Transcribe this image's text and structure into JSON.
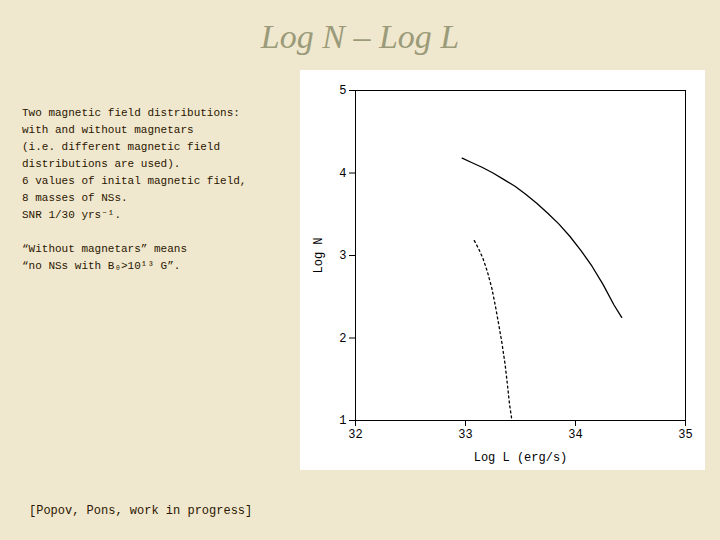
{
  "chart_data": {
    "type": "line",
    "title": "Log N – Log L",
    "xlabel": "Log L (erg/s)",
    "ylabel": "Log N",
    "xlim": [
      32,
      35
    ],
    "ylim": [
      1,
      5
    ],
    "xticks": [
      32,
      33,
      34,
      35
    ],
    "yticks": [
      1,
      2,
      3,
      4,
      5
    ],
    "grid": false,
    "series": [
      {
        "color": "#000000",
        "line_style": "solid",
        "x": [
          32.97,
          33.05,
          33.15,
          33.25,
          33.35,
          33.45,
          33.55,
          33.65,
          33.75,
          33.85,
          33.95,
          34.05,
          34.15,
          34.25,
          34.35,
          34.42
        ],
        "values": [
          4.18,
          4.13,
          4.07,
          4.0,
          3.92,
          3.84,
          3.74,
          3.63,
          3.51,
          3.38,
          3.23,
          3.06,
          2.87,
          2.65,
          2.4,
          2.25
        ]
      },
      {
        "color": "#000000",
        "line_style": "dotted",
        "x": [
          33.08,
          33.12,
          33.16,
          33.2,
          33.24,
          33.27,
          33.3,
          33.33,
          33.36,
          33.38,
          33.4,
          33.42
        ],
        "values": [
          3.18,
          3.08,
          2.96,
          2.8,
          2.6,
          2.4,
          2.18,
          1.95,
          1.68,
          1.45,
          1.2,
          1.02
        ]
      }
    ],
    "annotations": [
      [
        "Two magnetic field distributions:",
        "with and without magnetars",
        "(i.e. different magnetic field",
        "distributions are used).",
        "6 values of inital magnetic field,",
        "8 masses of NSs.",
        "SNR 1/30 yrs⁻¹."
      ],
      [
        "“Without magnetars” means",
        "“no NSs with B₀>10¹³ G”."
      ]
    ],
    "caption": "[Popov, Pons, work in progress]"
  }
}
